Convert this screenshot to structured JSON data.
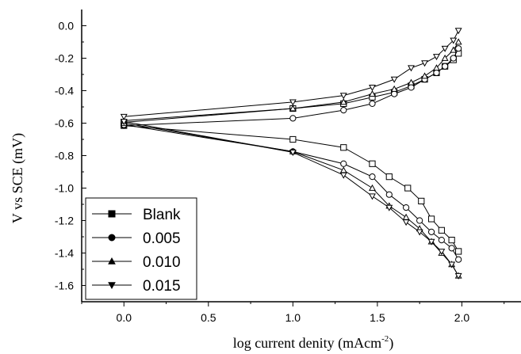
{
  "chart_data": {
    "type": "line",
    "xlabel": "log current denity (mAcm",
    "xlabel_sup": "-2",
    "xlabel_end": ")",
    "ylabel": "V vs SCE (mV)",
    "xlim": [
      -0.25,
      2.35
    ],
    "ylim": [
      -1.7,
      0.1
    ],
    "x_ticks": [
      0.0,
      0.5,
      1.0,
      1.5,
      2.0
    ],
    "x_tick_labels": [
      "0.0",
      "0.5",
      "1.0",
      "1.5",
      "2.0"
    ],
    "y_ticks": [
      0.0,
      -0.2,
      -0.4,
      -0.6,
      -0.8,
      -1.0,
      -1.2,
      -1.4,
      -1.6
    ],
    "y_tick_labels": [
      "0.0",
      "-0.2",
      "-0.4",
      "-0.6",
      "-0.8",
      "-1.0",
      "-1.2",
      "-1.4",
      "-1.6"
    ],
    "grid": false,
    "legend_position": "bottom-left",
    "series": [
      {
        "name": "Blank",
        "marker": "square",
        "branches": [
          {
            "x": [
              0.0,
              1.0,
              1.3,
              1.47,
              1.6,
              1.7,
              1.78,
              1.85,
              1.9,
              1.95,
              1.98
            ],
            "y": [
              -0.595,
              -0.51,
              -0.48,
              -0.44,
              -0.41,
              -0.37,
              -0.33,
              -0.29,
              -0.25,
              -0.21,
              -0.17
            ]
          },
          {
            "x": [
              0.0,
              1.0,
              1.3,
              1.47,
              1.57,
              1.68,
              1.76,
              1.82,
              1.88,
              1.94,
              1.98
            ],
            "y": [
              -0.615,
              -0.7,
              -0.75,
              -0.85,
              -0.93,
              -1.0,
              -1.08,
              -1.19,
              -1.26,
              -1.32,
              -1.39
            ]
          }
        ]
      },
      {
        "name": "0.005",
        "marker": "circle",
        "branches": [
          {
            "x": [
              0.0,
              1.0,
              1.3,
              1.47,
              1.6,
              1.7,
              1.78,
              1.85,
              1.9,
              1.95,
              1.98
            ],
            "y": [
              -0.615,
              -0.57,
              -0.52,
              -0.48,
              -0.42,
              -0.38,
              -0.33,
              -0.29,
              -0.25,
              -0.2,
              -0.14
            ]
          },
          {
            "x": [
              0.0,
              1.0,
              1.3,
              1.47,
              1.57,
              1.67,
              1.75,
              1.82,
              1.88,
              1.94,
              1.98
            ],
            "y": [
              -0.61,
              -0.775,
              -0.85,
              -0.93,
              -1.04,
              -1.12,
              -1.2,
              -1.27,
              -1.32,
              -1.37,
              -1.44
            ]
          }
        ]
      },
      {
        "name": "0.010",
        "marker": "triangle-up",
        "branches": [
          {
            "x": [
              0.0,
              1.0,
              1.3,
              1.47,
              1.6,
              1.7,
              1.78,
              1.85,
              1.9,
              1.95,
              1.98
            ],
            "y": [
              -0.585,
              -0.51,
              -0.47,
              -0.42,
              -0.39,
              -0.35,
              -0.31,
              -0.26,
              -0.2,
              -0.15,
              -0.1
            ]
          },
          {
            "x": [
              0.0,
              1.0,
              1.3,
              1.47,
              1.57,
              1.67,
              1.75,
              1.82,
              1.88,
              1.94,
              1.98
            ],
            "y": [
              -0.6,
              -0.775,
              -0.89,
              -1.0,
              -1.11,
              -1.18,
              -1.25,
              -1.33,
              -1.4,
              -1.47,
              -1.54
            ]
          }
        ]
      },
      {
        "name": "0.015",
        "marker": "triangle-down",
        "branches": [
          {
            "x": [
              0.0,
              1.0,
              1.3,
              1.47,
              1.6,
              1.7,
              1.78,
              1.85,
              1.9,
              1.95,
              1.98
            ],
            "y": [
              -0.56,
              -0.47,
              -0.43,
              -0.38,
              -0.33,
              -0.26,
              -0.23,
              -0.19,
              -0.14,
              -0.09,
              -0.03
            ]
          },
          {
            "x": [
              0.0,
              1.0,
              1.3,
              1.47,
              1.57,
              1.67,
              1.75,
              1.82,
              1.88,
              1.94,
              1.98
            ],
            "y": [
              -0.59,
              -0.78,
              -0.92,
              -1.05,
              -1.12,
              -1.21,
              -1.27,
              -1.33,
              -1.39,
              -1.47,
              -1.54
            ]
          }
        ]
      }
    ]
  }
}
